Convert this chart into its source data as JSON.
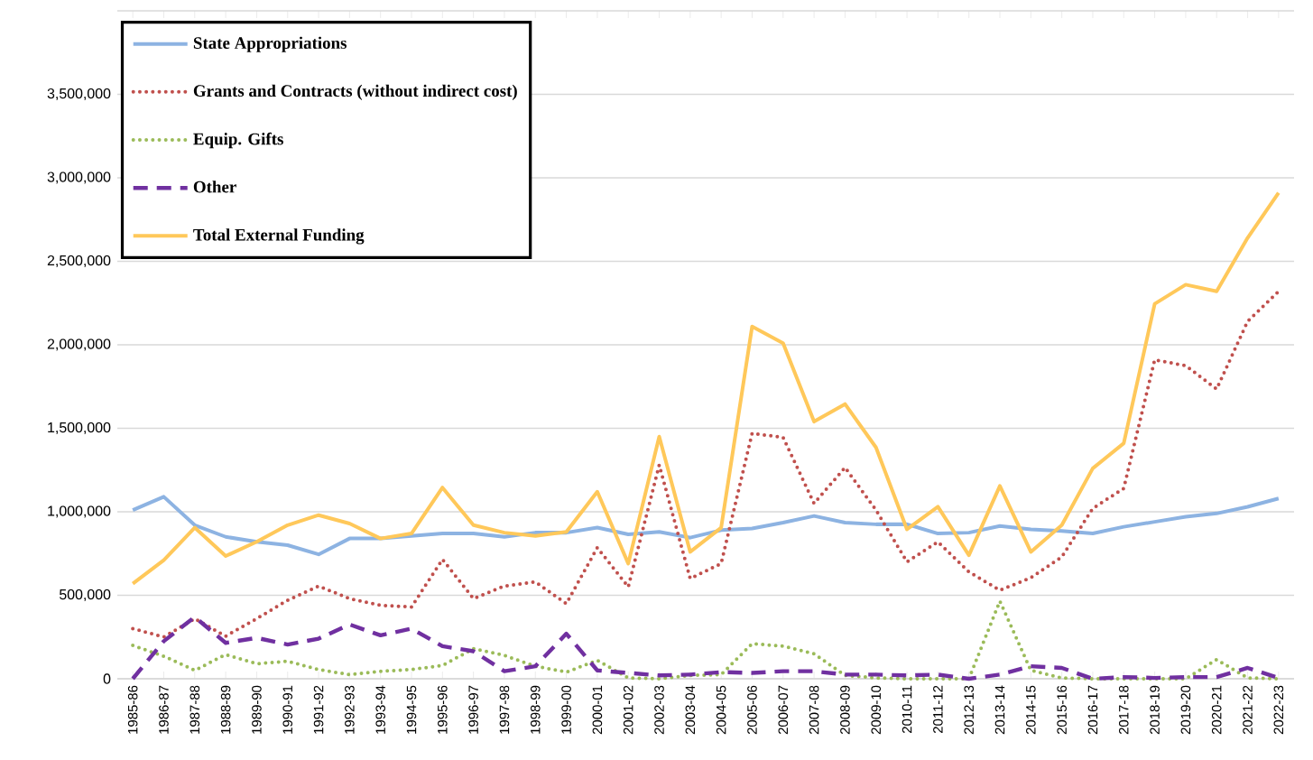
{
  "chart_data": {
    "type": "line",
    "categories": [
      "1985-86",
      "1986-87",
      "1987-88",
      "1988-89",
      "1989-90",
      "1990-91",
      "1991-92",
      "1992-93",
      "1993-94",
      "1994-95",
      "1995-96",
      "1996-97",
      "1997-98",
      "1998-99",
      "1999-00",
      "2000-01",
      "2001-02",
      "2002-03",
      "2003-04",
      "2004-05",
      "2005-06",
      "2006-07",
      "2007-08",
      "2008-09",
      "2009-10",
      "2010-11",
      "2011-12",
      "2012-13",
      "2013-14",
      "2014-15",
      "2015-16",
      "2016-17",
      "2017-18",
      "2018-19",
      "2019-20",
      "2020-21",
      "2021-22",
      "2022-23"
    ],
    "series": [
      {
        "name": "State Appropriations",
        "color": "#8db3e2",
        "line_style": "solid",
        "values": [
          1010000,
          1090000,
          920000,
          850000,
          820000,
          800000,
          745000,
          840000,
          840000,
          855000,
          870000,
          870000,
          850000,
          875000,
          875000,
          905000,
          865000,
          880000,
          845000,
          890000,
          900000,
          935000,
          975000,
          935000,
          925000,
          925000,
          870000,
          875000,
          915000,
          895000,
          885000,
          870000,
          910000,
          940000,
          970000,
          990000,
          1030000,
          1080000
        ]
      },
      {
        "name": "Grants and Contracts (without indirect cost)",
        "color": "#c0504d",
        "line_style": "dotted",
        "values": [
          300000,
          250000,
          360000,
          255000,
          360000,
          470000,
          555000,
          480000,
          440000,
          430000,
          715000,
          480000,
          555000,
          580000,
          450000,
          785000,
          550000,
          1280000,
          600000,
          690000,
          1470000,
          1445000,
          1050000,
          1265000,
          1010000,
          700000,
          820000,
          640000,
          530000,
          605000,
          730000,
          1020000,
          1140000,
          1910000,
          1875000,
          1735000,
          2140000,
          2320000
        ]
      },
      {
        "name": "Equip. Gifts",
        "color": "#9bbb59",
        "line_style": "dotted",
        "values": [
          200000,
          135000,
          50000,
          145000,
          90000,
          105000,
          55000,
          25000,
          45000,
          55000,
          80000,
          180000,
          140000,
          75000,
          40000,
          110000,
          5000,
          0,
          20000,
          25000,
          210000,
          195000,
          150000,
          20000,
          5000,
          0,
          0,
          0,
          465000,
          50000,
          5000,
          0,
          0,
          0,
          0,
          115000,
          5000,
          0
        ]
      },
      {
        "name": "Other",
        "color": "#7030a0",
        "line_style": "dashed",
        "values": [
          0,
          225000,
          370000,
          215000,
          245000,
          205000,
          240000,
          325000,
          260000,
          300000,
          195000,
          165000,
          45000,
          75000,
          270000,
          50000,
          35000,
          20000,
          25000,
          40000,
          35000,
          45000,
          45000,
          25000,
          25000,
          20000,
          25000,
          0,
          25000,
          75000,
          65000,
          0,
          10000,
          5000,
          10000,
          10000,
          65000,
          5000
        ]
      },
      {
        "name": "Total External Funding",
        "color": "#ffc85a",
        "line_style": "solid",
        "values": [
          570000,
          710000,
          905000,
          735000,
          820000,
          920000,
          980000,
          930000,
          840000,
          870000,
          1145000,
          920000,
          875000,
          855000,
          880000,
          1120000,
          690000,
          1450000,
          760000,
          905000,
          2110000,
          2010000,
          1540000,
          1645000,
          1385000,
          895000,
          1030000,
          740000,
          1155000,
          760000,
          920000,
          1260000,
          1410000,
          2245000,
          2360000,
          2320000,
          2640000,
          2910000
        ]
      }
    ],
    "ylim": [
      0,
      4000000
    ],
    "yticks": [
      {
        "value": 0,
        "label": "0"
      },
      {
        "value": 500000,
        "label": "500,000"
      },
      {
        "value": 1000000,
        "label": "1,000,000"
      },
      {
        "value": 1500000,
        "label": "1,500,000"
      },
      {
        "value": 2000000,
        "label": "2,000,000"
      },
      {
        "value": 2500000,
        "label": "2,500,000"
      },
      {
        "value": 3000000,
        "label": "3,000,000"
      },
      {
        "value": 3500000,
        "label": "3,500,000"
      }
    ],
    "grid": "y",
    "legend": "top left",
    "marker": "none"
  }
}
